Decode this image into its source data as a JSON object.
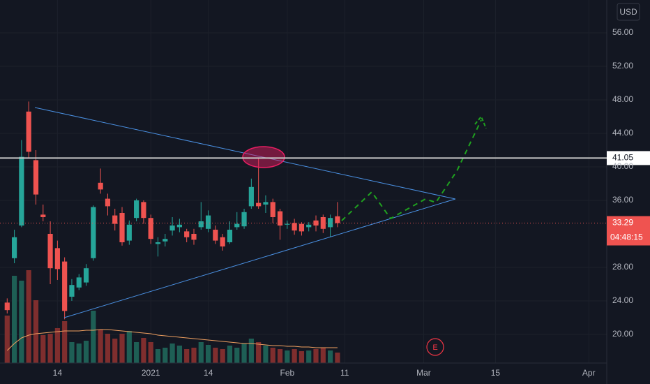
{
  "chart_data": {
    "type": "candlestick",
    "currency": "USD",
    "x": [
      0,
      1,
      2,
      3,
      4,
      5,
      6,
      7,
      8,
      9,
      10,
      11,
      12,
      13,
      14,
      15,
      16,
      17,
      18,
      19,
      20,
      21,
      22,
      23,
      24,
      25,
      26,
      27,
      28,
      29,
      30,
      31,
      32,
      33,
      34,
      35,
      36,
      37,
      38,
      39,
      40,
      41,
      42,
      43,
      44,
      45,
      46
    ],
    "open": [
      23.8,
      29.1,
      33.0,
      46.6,
      40.8,
      34.3,
      32.0,
      30.3,
      28.7,
      24.5,
      25.6,
      26.2,
      29.1,
      38.1,
      36.2,
      34.2,
      34.5,
      31.2,
      33.9,
      35.8,
      33.9,
      30.8,
      31.1,
      32.4,
      32.8,
      32.3,
      32.0,
      32.8,
      32.6,
      32.5,
      31.6,
      31.0,
      32.8,
      32.9,
      35.3,
      35.7,
      35.5,
      35.8,
      34.7,
      33.1,
      33.3,
      33.2,
      32.8,
      33.6,
      34.0,
      32.8,
      34.1
    ],
    "high": [
      24.3,
      32.5,
      43.2,
      47.8,
      42.0,
      35.5,
      33.5,
      31.2,
      29.2,
      26.6,
      27.2,
      28.4,
      35.4,
      39.8,
      36.8,
      35.0,
      35.2,
      33.6,
      36.2,
      36.0,
      34.3,
      31.6,
      32.0,
      34.0,
      33.8,
      32.6,
      32.6,
      35.8,
      34.8,
      33.0,
      32.0,
      33.5,
      34.6,
      35.0,
      38.6,
      41.1,
      36.6,
      36.2,
      35.0,
      33.6,
      33.8,
      33.4,
      33.4,
      34.2,
      34.3,
      34.3,
      35.8
    ],
    "low": [
      22.5,
      28.5,
      32.8,
      41.0,
      35.5,
      33.5,
      26.0,
      26.5,
      21.8,
      24.0,
      25.3,
      25.8,
      28.8,
      36.8,
      34.2,
      32.4,
      30.6,
      30.7,
      33.5,
      33.2,
      30.8,
      29.3,
      30.5,
      31.8,
      32.2,
      31.0,
      30.7,
      32.5,
      32.2,
      30.8,
      30.0,
      30.8,
      32.5,
      32.6,
      35.0,
      35.0,
      34.5,
      33.3,
      31.3,
      32.6,
      31.9,
      31.8,
      32.3,
      32.3,
      32.1,
      31.6,
      32.8
    ],
    "close": [
      22.9,
      31.6,
      41.2,
      41.8,
      36.7,
      34.0,
      27.9,
      27.8,
      22.8,
      25.9,
      26.8,
      27.9,
      35.2,
      37.3,
      35.3,
      33.2,
      31.0,
      33.1,
      36.0,
      33.9,
      31.4,
      31.0,
      31.4,
      33.0,
      33.1,
      31.6,
      31.3,
      33.5,
      34.2,
      31.2,
      30.5,
      32.5,
      33.2,
      34.6,
      37.6,
      35.3,
      35.8,
      34.0,
      33.0,
      33.2,
      32.4,
      32.3,
      33.1,
      33.0,
      32.6,
      33.9,
      33.29
    ],
    "volume": [
      68,
      125,
      118,
      133,
      90,
      40,
      42,
      50,
      60,
      30,
      28,
      32,
      75,
      48,
      42,
      35,
      42,
      46,
      30,
      36,
      30,
      20,
      22,
      28,
      25,
      20,
      22,
      30,
      26,
      22,
      20,
      25,
      22,
      28,
      35,
      30,
      25,
      22,
      20,
      18,
      20,
      17,
      18,
      20,
      22,
      18,
      15
    ],
    "volume_ma": [
      18,
      28,
      36,
      40,
      42,
      43,
      44,
      45,
      46,
      46,
      46,
      47,
      47,
      48,
      48,
      47,
      46,
      45,
      44,
      43,
      42,
      40,
      39,
      38,
      37,
      36,
      35,
      34,
      33,
      32,
      31,
      30,
      29,
      28,
      28,
      27,
      26,
      25,
      25,
      24,
      24,
      23,
      23,
      22,
      22,
      22,
      22
    ],
    "volume_ylim": [
      0,
      520
    ],
    "up_color": "#26a69a",
    "down_color": "#ef5350",
    "volume_up_color": "#1e5f55",
    "volume_down_color": "#7f2e2e",
    "volume_ma_color": "#f0a060",
    "xlim": [
      -1,
      83.5
    ],
    "xticks": [
      {
        "value": 7,
        "label": "14"
      },
      {
        "value": 20,
        "label": "2021"
      },
      {
        "value": 28,
        "label": "14"
      },
      {
        "value": 39,
        "label": "Feb"
      },
      {
        "value": 47,
        "label": "11"
      },
      {
        "value": 58,
        "label": "Mar"
      },
      {
        "value": 68,
        "label": "15"
      },
      {
        "value": 81,
        "label": "Apr"
      }
    ],
    "ylim": [
      16.58,
      59.92
    ],
    "yticks": [
      {
        "value": 20,
        "label": "20.00"
      },
      {
        "value": 24,
        "label": "24.00"
      },
      {
        "value": 28,
        "label": "28.00"
      },
      {
        "value": 36,
        "label": "36.00"
      },
      {
        "value": 40,
        "label": "40.00"
      },
      {
        "value": 44,
        "label": "44.00"
      },
      {
        "value": 48,
        "label": "48.00"
      },
      {
        "value": 52,
        "label": "52.00"
      },
      {
        "value": 56,
        "label": "56.00"
      }
    ],
    "grid": true,
    "horizontal_line": 41.05,
    "last_price": 33.29,
    "countdown": "04:48:15",
    "earnings_marker": "E"
  }
}
